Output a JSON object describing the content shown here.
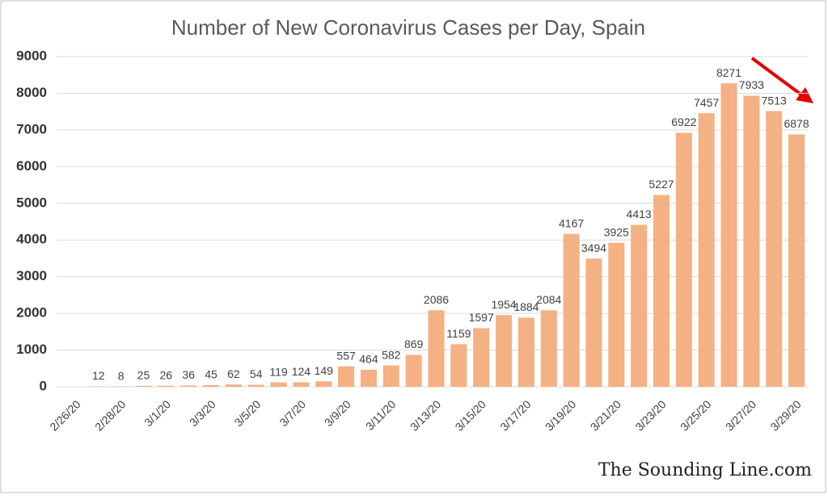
{
  "chart_data": {
    "type": "bar",
    "title": "Number of New Coronavirus Cases per Day, Spain",
    "watermark": "The Sounding Line.com",
    "categories": [
      "2/26/20",
      null,
      "2/28/20",
      null,
      "3/1/20",
      null,
      "3/3/20",
      null,
      "3/5/20",
      null,
      "3/7/20",
      null,
      "3/9/20",
      null,
      "3/11/20",
      null,
      "3/13/20",
      null,
      "3/15/20",
      null,
      "3/17/20",
      null,
      "3/19/20",
      null,
      "3/21/20",
      null,
      "3/23/20",
      null,
      "3/25/20",
      null,
      "3/27/20",
      null,
      "3/29/20"
    ],
    "values": [
      null,
      12,
      8,
      25,
      26,
      36,
      45,
      62,
      54,
      119,
      124,
      149,
      557,
      464,
      582,
      869,
      2086,
      1159,
      1597,
      1954,
      1884,
      2084,
      4167,
      3494,
      3925,
      4413,
      5227,
      6922,
      7457,
      8271,
      7933,
      7513,
      6878
    ],
    "color": "#f4b183",
    "ylim": [
      0,
      9000
    ],
    "yticks": [
      0,
      1000,
      2000,
      3000,
      4000,
      5000,
      6000,
      7000,
      8000,
      9000
    ],
    "grid": true
  }
}
